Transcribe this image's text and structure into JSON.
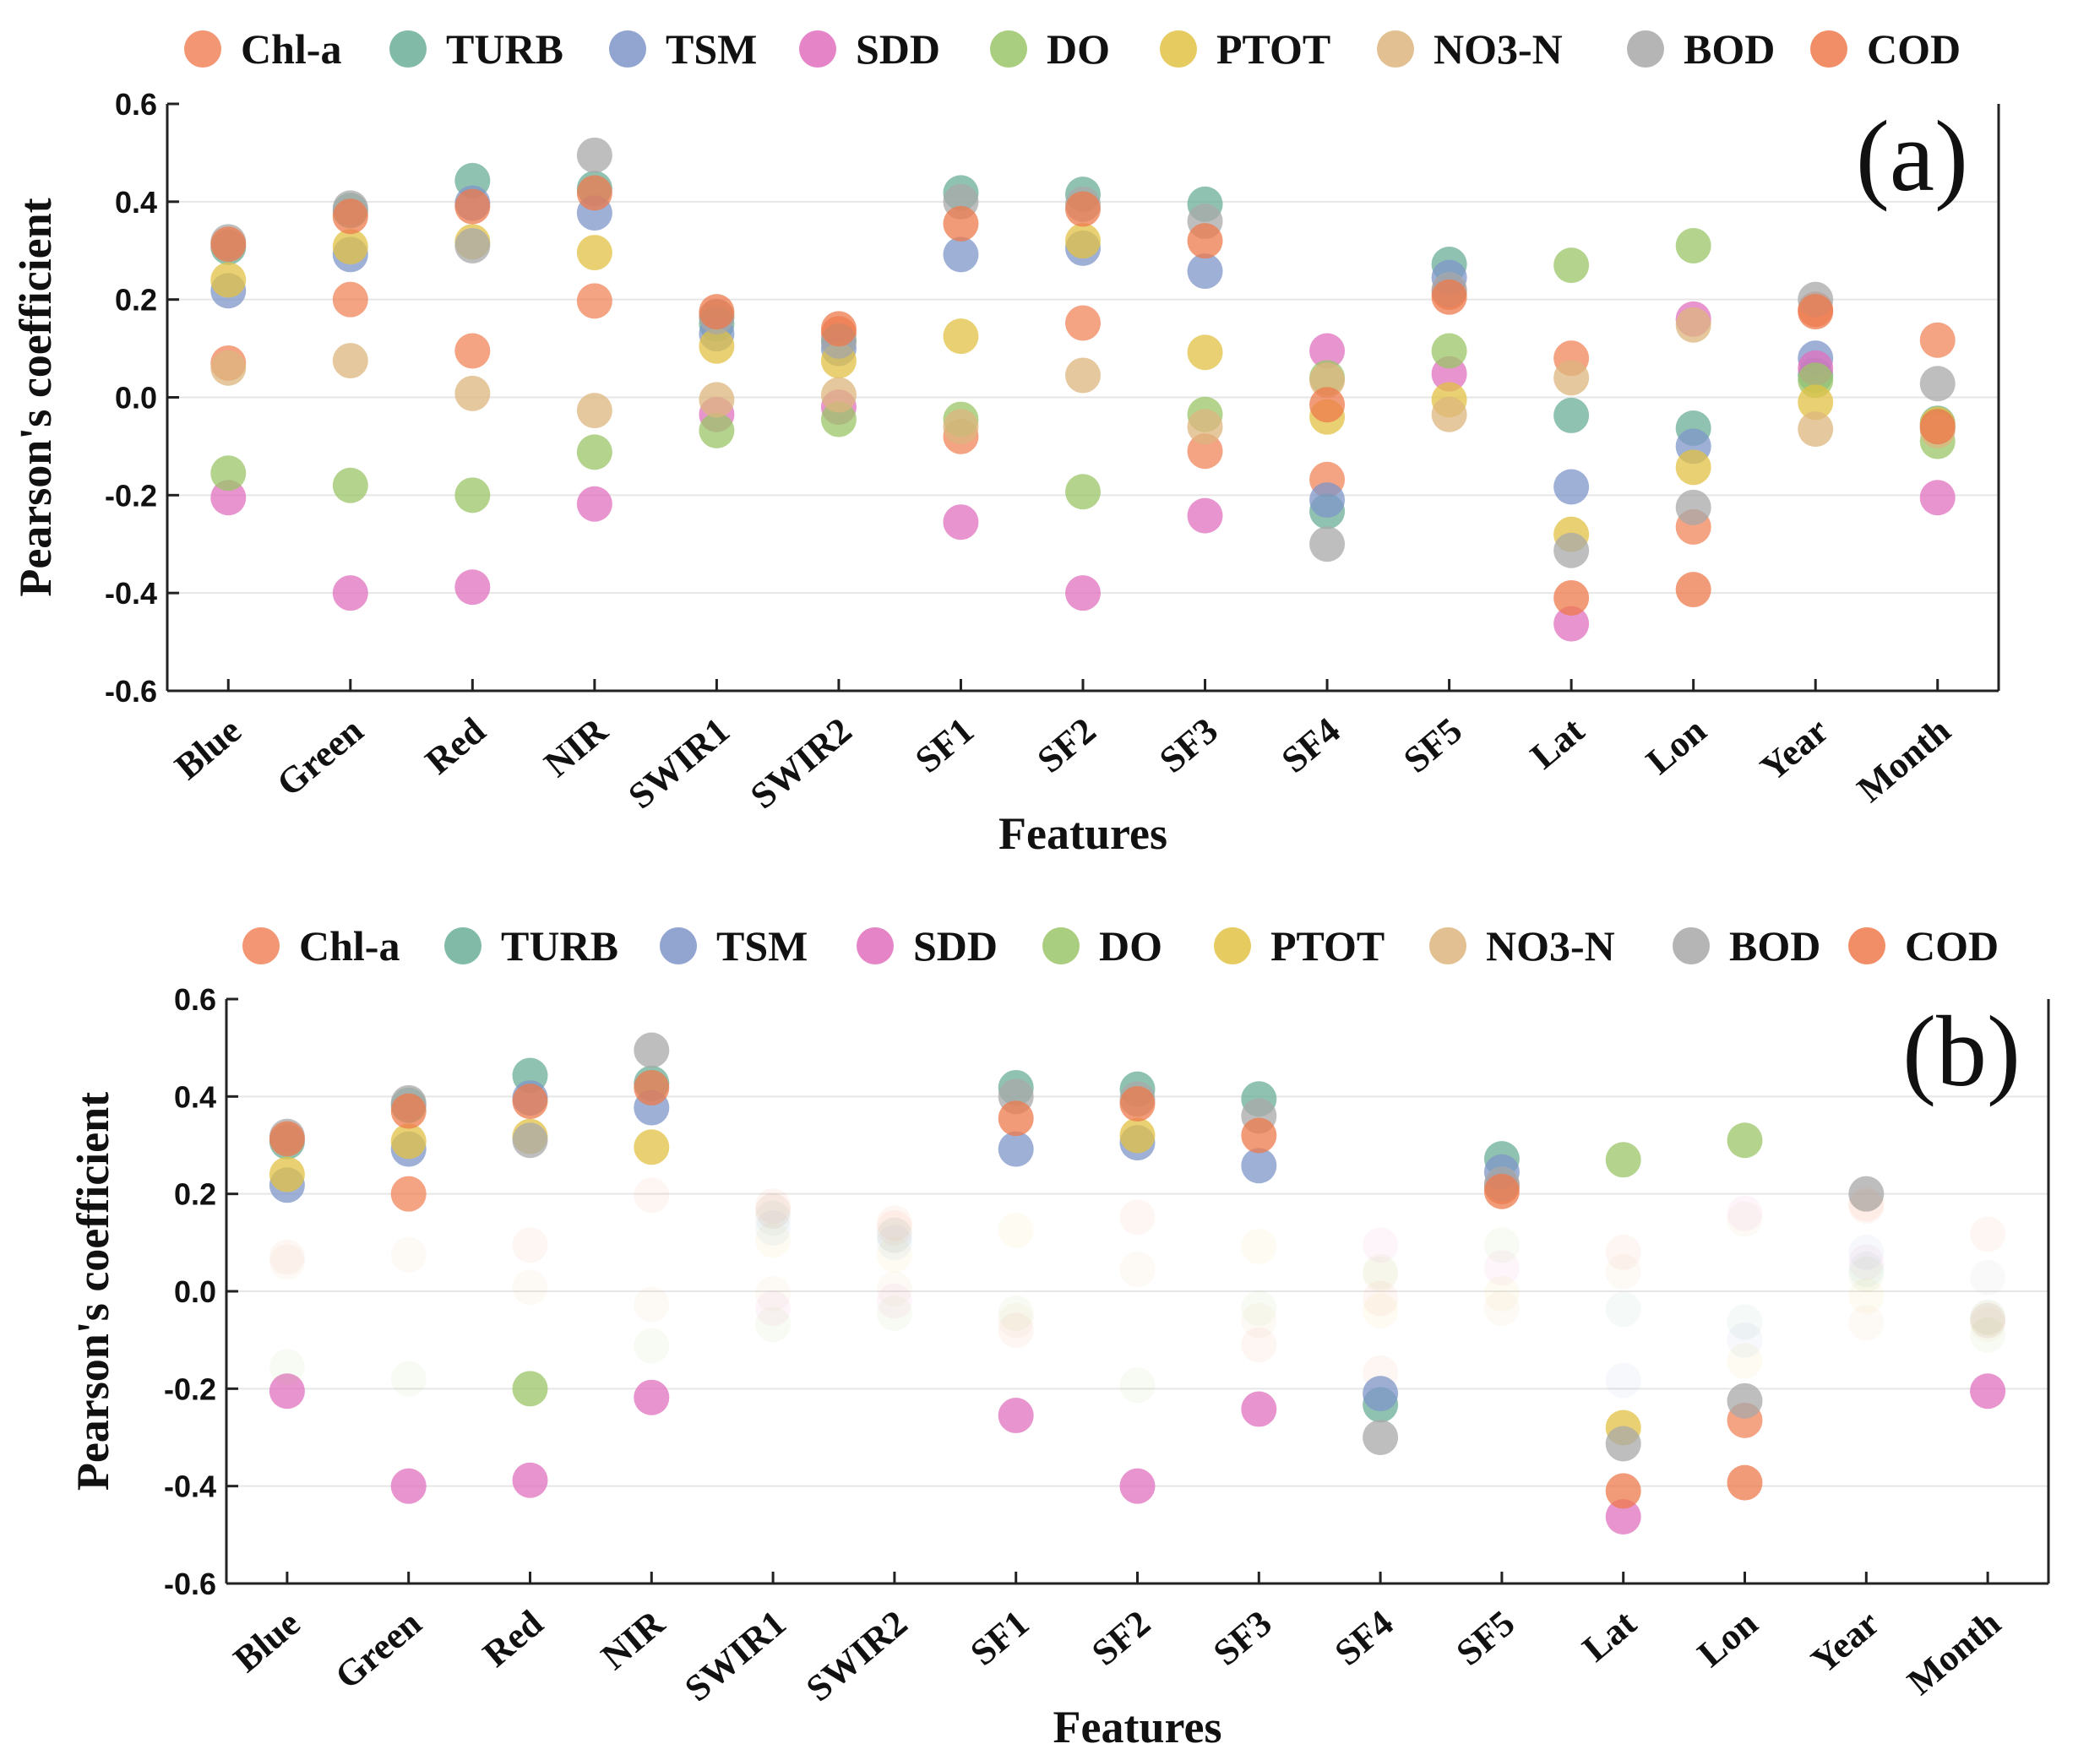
{
  "chart_data": [
    {
      "type": "scatter",
      "panel_label": "(a)",
      "xlabel": "Features",
      "ylabel": "Pearson's coefficient",
      "ylim": [
        -0.6,
        0.6
      ],
      "yticks": [
        "0.6",
        "0.4",
        "0.2",
        "0.0",
        "-0.2",
        "-0.4",
        "-0.6"
      ],
      "grid": true,
      "legend_position": "top",
      "categories": [
        "Blue",
        "Green",
        "Red",
        "NIR",
        "SWIR1",
        "SWIR2",
        "SF1",
        "SF2",
        "SF3",
        "SF4",
        "SF5",
        "Lat",
        "Lon",
        "Year",
        "Month"
      ],
      "series": [
        {
          "name": "Chl-a",
          "color": "#F0845A",
          "values": [
            0.07,
            0.2,
            0.095,
            0.197,
            0.165,
            0.13,
            -0.08,
            0.152,
            -0.11,
            -0.168,
            0.215,
            0.08,
            -0.265,
            0.18,
            0.117
          ]
        },
        {
          "name": "TURB",
          "color": "#6BAE98",
          "values": [
            0.307,
            0.382,
            0.443,
            0.427,
            0.15,
            0.115,
            0.418,
            0.415,
            0.395,
            -0.233,
            0.272,
            -0.037,
            -0.063,
            0.045,
            -0.053
          ]
        },
        {
          "name": "TSM",
          "color": "#7E95C8",
          "values": [
            0.218,
            0.292,
            0.397,
            0.377,
            0.13,
            0.1,
            0.292,
            0.305,
            0.258,
            -0.21,
            0.245,
            -0.183,
            -0.1,
            0.08,
            -0.06
          ]
        },
        {
          "name": "SDD",
          "color": "#E070BE",
          "values": [
            -0.205,
            -0.4,
            -0.388,
            -0.218,
            -0.035,
            -0.02,
            -0.255,
            -0.4,
            -0.242,
            0.095,
            0.048,
            -0.463,
            0.16,
            0.06,
            -0.205
          ]
        },
        {
          "name": "DO",
          "color": "#9BC568",
          "values": [
            -0.155,
            -0.18,
            -0.2,
            -0.112,
            -0.068,
            -0.045,
            -0.045,
            -0.193,
            -0.035,
            0.04,
            0.095,
            0.27,
            0.31,
            0.035,
            -0.09
          ]
        },
        {
          "name": "PTOT",
          "color": "#E2C244",
          "values": [
            0.24,
            0.308,
            0.318,
            0.296,
            0.105,
            0.075,
            0.125,
            0.32,
            0.092,
            -0.04,
            -0.005,
            -0.28,
            -0.143,
            -0.01,
            -0.055
          ]
        },
        {
          "name": "NO3-N",
          "color": "#DDB57E",
          "values": [
            0.06,
            0.075,
            0.008,
            -0.027,
            -0.005,
            0.005,
            -0.06,
            0.045,
            -0.06,
            0.035,
            -0.035,
            0.04,
            0.148,
            -0.065,
            -0.068
          ]
        },
        {
          "name": "BOD",
          "color": "#A8A8A8",
          "values": [
            0.318,
            0.387,
            0.31,
            0.495,
            0.165,
            0.115,
            0.4,
            0.395,
            0.36,
            -0.3,
            0.22,
            -0.313,
            -0.225,
            0.2,
            0.028
          ]
        },
        {
          "name": "COD",
          "color": "#EE7A4C",
          "values": [
            0.313,
            0.37,
            0.39,
            0.418,
            0.175,
            0.14,
            0.355,
            0.385,
            0.32,
            -0.015,
            0.205,
            -0.41,
            -0.393,
            0.175,
            -0.06
          ]
        }
      ]
    },
    {
      "type": "scatter",
      "panel_label": "(b)",
      "xlabel": "Features",
      "ylabel": "Pearson's coefficient",
      "ylim": [
        -0.6,
        0.6
      ],
      "yticks": [
        "0.6",
        "0.4",
        "0.2",
        "0.0",
        "-0.2",
        "-0.4",
        "-0.6"
      ],
      "grid": true,
      "legend_position": "top",
      "highlight_threshold": 0.2,
      "categories": [
        "Blue",
        "Green",
        "Red",
        "NIR",
        "SWIR1",
        "SWIR2",
        "SF1",
        "SF2",
        "SF3",
        "SF4",
        "SF5",
        "Lat",
        "Lon",
        "Year",
        "Month"
      ],
      "series": [
        {
          "name": "Chl-a",
          "color": "#F0845A",
          "values": [
            0.07,
            0.2,
            0.095,
            0.197,
            0.165,
            0.13,
            -0.08,
            0.152,
            -0.11,
            -0.168,
            0.215,
            0.08,
            -0.265,
            0.18,
            0.117
          ]
        },
        {
          "name": "TURB",
          "color": "#6BAE98",
          "values": [
            0.307,
            0.382,
            0.443,
            0.427,
            0.15,
            0.115,
            0.418,
            0.415,
            0.395,
            -0.233,
            0.272,
            -0.037,
            -0.063,
            0.045,
            -0.053
          ]
        },
        {
          "name": "TSM",
          "color": "#7E95C8",
          "values": [
            0.218,
            0.292,
            0.397,
            0.377,
            0.13,
            0.1,
            0.292,
            0.305,
            0.258,
            -0.21,
            0.245,
            -0.183,
            -0.1,
            0.08,
            -0.06
          ]
        },
        {
          "name": "SDD",
          "color": "#E070BE",
          "values": [
            -0.205,
            -0.4,
            -0.388,
            -0.218,
            -0.035,
            -0.02,
            -0.255,
            -0.4,
            -0.242,
            0.095,
            0.048,
            -0.463,
            0.16,
            0.06,
            -0.205
          ]
        },
        {
          "name": "DO",
          "color": "#9BC568",
          "values": [
            -0.155,
            -0.18,
            -0.2,
            -0.112,
            -0.068,
            -0.045,
            -0.045,
            -0.193,
            -0.035,
            0.04,
            0.095,
            0.27,
            0.31,
            0.035,
            -0.09
          ]
        },
        {
          "name": "PTOT",
          "color": "#E2C244",
          "values": [
            0.24,
            0.308,
            0.318,
            0.296,
            0.105,
            0.075,
            0.125,
            0.32,
            0.092,
            -0.04,
            -0.005,
            -0.28,
            -0.143,
            -0.01,
            -0.055
          ]
        },
        {
          "name": "NO3-N",
          "color": "#DDB57E",
          "values": [
            0.06,
            0.075,
            0.008,
            -0.027,
            -0.005,
            0.005,
            -0.06,
            0.045,
            -0.06,
            0.035,
            -0.035,
            0.04,
            0.148,
            -0.065,
            -0.068
          ]
        },
        {
          "name": "BOD",
          "color": "#A8A8A8",
          "values": [
            0.318,
            0.387,
            0.31,
            0.495,
            0.165,
            0.115,
            0.4,
            0.395,
            0.36,
            -0.3,
            0.22,
            -0.313,
            -0.225,
            0.2,
            0.028
          ]
        },
        {
          "name": "COD",
          "color": "#EE7A4C",
          "values": [
            0.313,
            0.37,
            0.39,
            0.418,
            0.175,
            0.14,
            0.355,
            0.385,
            0.32,
            -0.015,
            0.205,
            -0.41,
            -0.393,
            0.175,
            -0.06
          ]
        }
      ]
    }
  ]
}
